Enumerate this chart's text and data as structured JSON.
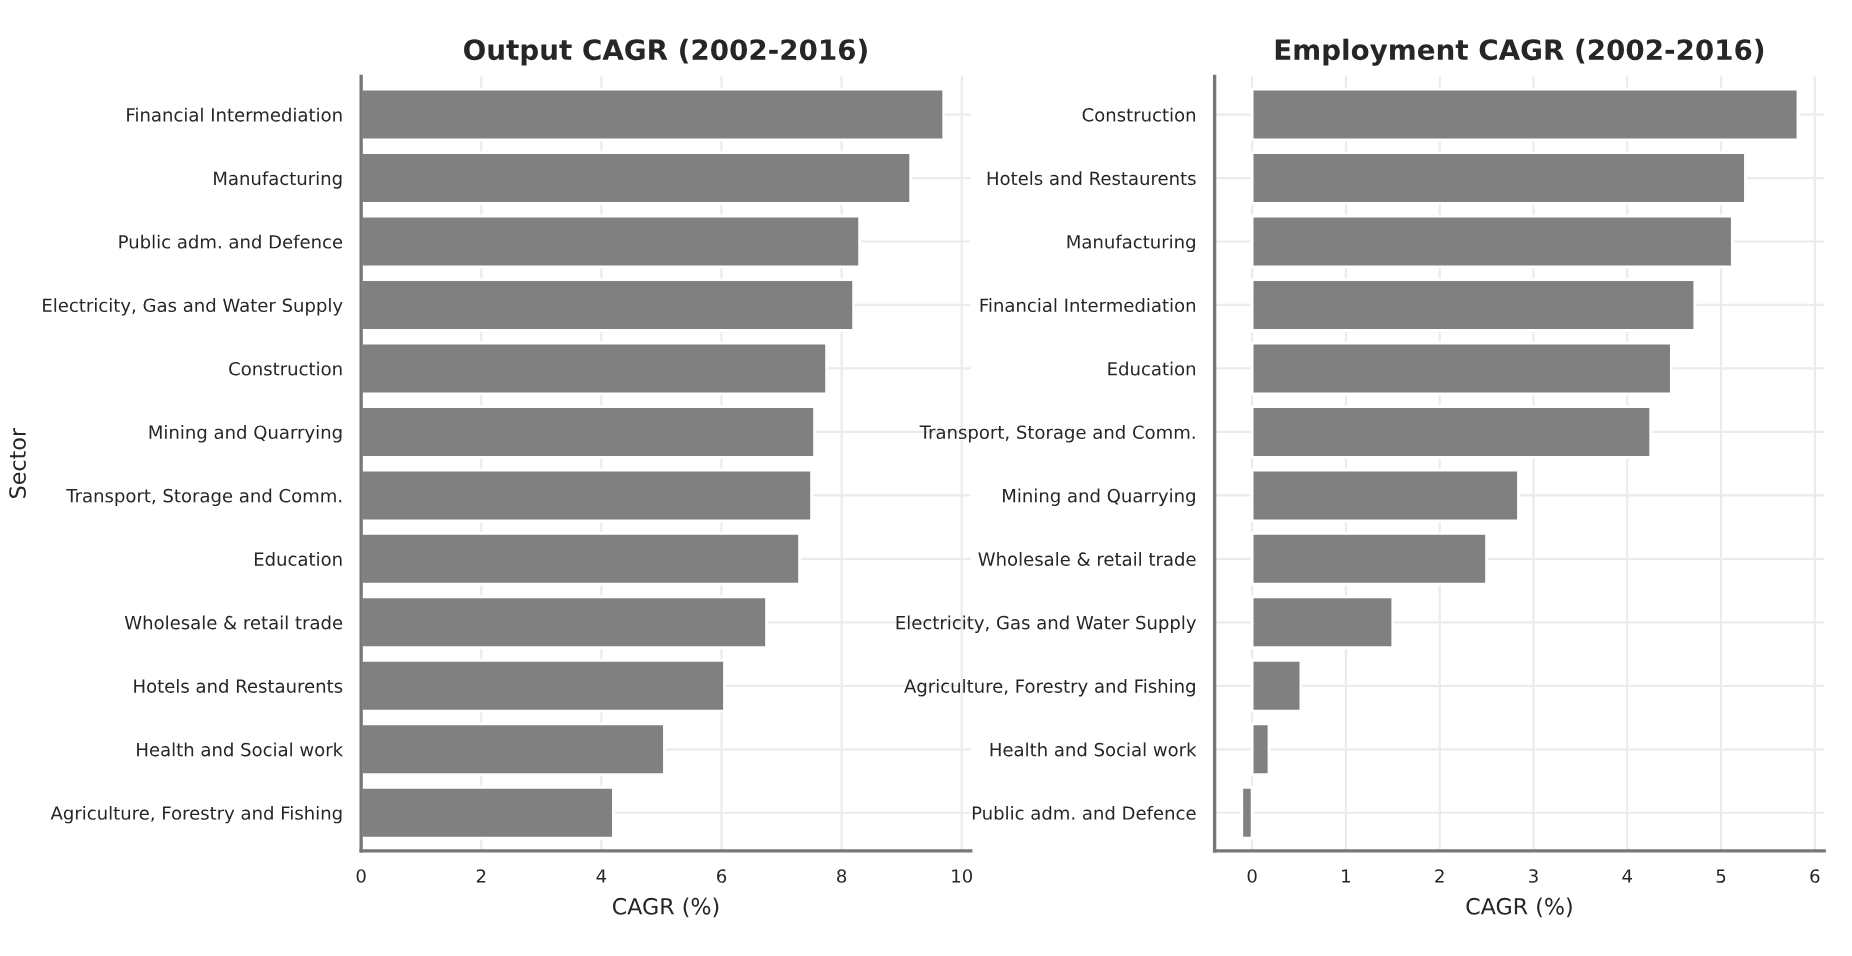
{
  "chart_data": [
    {
      "type": "bar",
      "orientation": "horizontal",
      "title": "Output CAGR (2002-2016)",
      "xlabel": "CAGR (%)",
      "ylabel": "Sector",
      "categories": [
        "Financial Intermediation",
        "Manufacturing",
        "Public adm. and Defence",
        "Electricity, Gas and Water Supply",
        "Construction",
        "Mining and Quarrying",
        "Transport, Storage and Comm.",
        "Education",
        "Wholesale & retail trade",
        "Hotels and Restaurents",
        "Health and Social work",
        "Agriculture, Forestry and Fishing"
      ],
      "values": [
        9.7,
        9.15,
        8.3,
        8.2,
        7.75,
        7.55,
        7.5,
        7.3,
        6.75,
        6.05,
        5.05,
        4.2
      ],
      "color": "#808080",
      "xlim": [
        0,
        10.15
      ],
      "xticks": [
        0,
        2,
        4,
        6,
        8,
        10
      ],
      "grid": true
    },
    {
      "type": "bar",
      "orientation": "horizontal",
      "title": "Employment CAGR (2002-2016)",
      "xlabel": "CAGR (%)",
      "categories": [
        "Construction",
        "Hotels and Restaurents",
        "Manufacturing",
        "Financial Intermediation",
        "Education",
        "Transport, Storage and Comm.",
        "Mining and Quarrying",
        "Wholesale & retail trade",
        "Electricity, Gas and Water Supply",
        "Agriculture, Forestry and Fishing",
        "Health and Social work",
        "Public adm. and Defence"
      ],
      "values": [
        5.82,
        5.26,
        5.12,
        4.72,
        4.47,
        4.25,
        2.84,
        2.5,
        1.5,
        0.52,
        0.18,
        -0.11
      ],
      "color": "#808080",
      "xlim": [
        -0.4,
        6.1
      ],
      "xticks": [
        0,
        1,
        2,
        3,
        4,
        5,
        6
      ],
      "grid": true
    }
  ]
}
